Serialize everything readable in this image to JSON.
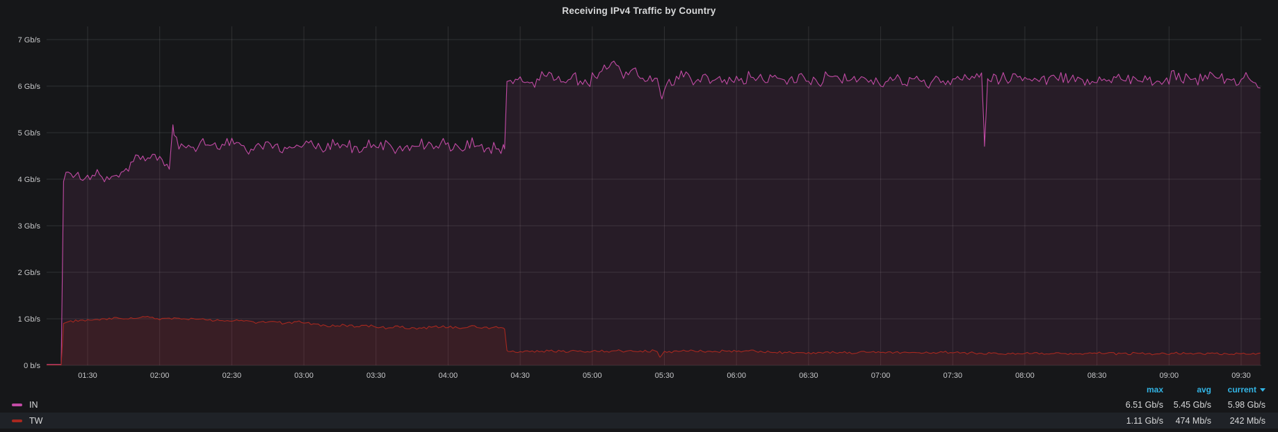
{
  "panel": {
    "title": "Receiving IPv4 Traffic by Country"
  },
  "colors": {
    "background": "#161719",
    "grid": "rgba(255,255,255,0.11)",
    "axis_text": "#c7c8ca",
    "title_text": "#d8d9da",
    "legend_header": "#33b5e5",
    "series_in": "#c24ba5",
    "series_tw": "#a8281f"
  },
  "chart_data": {
    "type": "line",
    "title": "Receiving IPv4 Traffic by Country",
    "x_axis": {
      "unit": "time (HH:MM)",
      "range_minutes": [
        73,
        578
      ],
      "tick_minutes": [
        90,
        120,
        150,
        180,
        210,
        240,
        270,
        300,
        330,
        360,
        390,
        420,
        450,
        480,
        510,
        540,
        570
      ],
      "tick_labels": [
        "01:30",
        "02:00",
        "02:30",
        "03:00",
        "03:30",
        "04:00",
        "04:30",
        "05:00",
        "05:30",
        "06:00",
        "06:30",
        "07:00",
        "07:30",
        "08:00",
        "08:30",
        "09:00",
        "09:30"
      ]
    },
    "y_axis": {
      "unit": "bits per second",
      "range": [
        0,
        7
      ],
      "tick_values": [
        0,
        1,
        2,
        3,
        4,
        5,
        6,
        7
      ],
      "tick_labels": [
        "0 b/s",
        "1 Gb/s",
        "2 Gb/s",
        "3 Gb/s",
        "4 Gb/s",
        "5 Gb/s",
        "6 Gb/s",
        "7 Gb/s"
      ],
      "grid": true
    },
    "series": [
      {
        "name": "IN",
        "color": "#c24ba5",
        "fill_opacity": 0.1,
        "seed": 7,
        "noise": [
          [
            81,
            263,
            0.1
          ],
          [
            266,
            578,
            0.1
          ]
        ],
        "points": [
          [
            73,
            0.02
          ],
          [
            79,
            0.02
          ],
          [
            80,
            3.95
          ],
          [
            83,
            4.1
          ],
          [
            88,
            4.0
          ],
          [
            95,
            4.1
          ],
          [
            100,
            4.05
          ],
          [
            104,
            4.2
          ],
          [
            107,
            4.15
          ],
          [
            109,
            4.45
          ],
          [
            112,
            4.5
          ],
          [
            116,
            4.45
          ],
          [
            119,
            4.55
          ],
          [
            122,
            4.35
          ],
          [
            124,
            4.3
          ],
          [
            125.5,
            5.12
          ],
          [
            127,
            4.8
          ],
          [
            132,
            4.65
          ],
          [
            138,
            4.75
          ],
          [
            145,
            4.7
          ],
          [
            152,
            4.78
          ],
          [
            158,
            4.65
          ],
          [
            165,
            4.75
          ],
          [
            172,
            4.7
          ],
          [
            180,
            4.72
          ],
          [
            188,
            4.65
          ],
          [
            195,
            4.75
          ],
          [
            202,
            4.7
          ],
          [
            210,
            4.75
          ],
          [
            218,
            4.65
          ],
          [
            226,
            4.72
          ],
          [
            234,
            4.78
          ],
          [
            242,
            4.68
          ],
          [
            250,
            4.75
          ],
          [
            256,
            4.7
          ],
          [
            261,
            4.62
          ],
          [
            263.5,
            4.65
          ],
          [
            264.5,
            6.1
          ],
          [
            268,
            6.15
          ],
          [
            274,
            6.05
          ],
          [
            280,
            6.2
          ],
          [
            286,
            6.1
          ],
          [
            292,
            6.18
          ],
          [
            298,
            6.08
          ],
          [
            303,
            6.25
          ],
          [
            309,
            6.5
          ],
          [
            313,
            6.15
          ],
          [
            317,
            6.4
          ],
          [
            322,
            6.1
          ],
          [
            327,
            6.15
          ],
          [
            328.5,
            5.8
          ],
          [
            331,
            6.1
          ],
          [
            337,
            6.2
          ],
          [
            344,
            6.1
          ],
          [
            352,
            6.18
          ],
          [
            360,
            6.12
          ],
          [
            368,
            6.2
          ],
          [
            376,
            6.1
          ],
          [
            384,
            6.18
          ],
          [
            392,
            6.1
          ],
          [
            400,
            6.2
          ],
          [
            408,
            6.12
          ],
          [
            416,
            6.18
          ],
          [
            424,
            6.1
          ],
          [
            432,
            6.16
          ],
          [
            440,
            6.1
          ],
          [
            448,
            6.18
          ],
          [
            456,
            6.12
          ],
          [
            462,
            6.15
          ],
          [
            463.2,
            4.85
          ],
          [
            464.5,
            6.1
          ],
          [
            470,
            6.15
          ],
          [
            478,
            6.2
          ],
          [
            486,
            6.1
          ],
          [
            494,
            6.18
          ],
          [
            502,
            6.12
          ],
          [
            510,
            6.2
          ],
          [
            518,
            6.1
          ],
          [
            526,
            6.18
          ],
          [
            534,
            6.1
          ],
          [
            542,
            6.2
          ],
          [
            550,
            6.12
          ],
          [
            558,
            6.18
          ],
          [
            566,
            6.1
          ],
          [
            572,
            6.2
          ],
          [
            576,
            6.05
          ],
          [
            578,
            6.0
          ]
        ]
      },
      {
        "name": "TW",
        "color": "#a8281f",
        "fill_opacity": 0.14,
        "seed": 13,
        "noise": [
          [
            81,
            578,
            0.018
          ]
        ],
        "points": [
          [
            73,
            0.01
          ],
          [
            79,
            0.01
          ],
          [
            80,
            0.9
          ],
          [
            84,
            0.95
          ],
          [
            90,
            0.97
          ],
          [
            96,
            1.0
          ],
          [
            102,
            1.02
          ],
          [
            108,
            1.0
          ],
          [
            114,
            1.03
          ],
          [
            120,
            1.0
          ],
          [
            126,
            1.02
          ],
          [
            132,
            0.99
          ],
          [
            138,
            1.0
          ],
          [
            144,
            0.96
          ],
          [
            150,
            0.94
          ],
          [
            155,
            0.97
          ],
          [
            160,
            0.92
          ],
          [
            166,
            0.95
          ],
          [
            172,
            0.9
          ],
          [
            178,
            0.93
          ],
          [
            184,
            0.88
          ],
          [
            190,
            0.85
          ],
          [
            196,
            0.86
          ],
          [
            202,
            0.83
          ],
          [
            208,
            0.85
          ],
          [
            214,
            0.8
          ],
          [
            220,
            0.83
          ],
          [
            226,
            0.78
          ],
          [
            232,
            0.81
          ],
          [
            238,
            0.84
          ],
          [
            244,
            0.8
          ],
          [
            250,
            0.83
          ],
          [
            256,
            0.8
          ],
          [
            260,
            0.82
          ],
          [
            263.5,
            0.78
          ],
          [
            264.5,
            0.31
          ],
          [
            270,
            0.3
          ],
          [
            278,
            0.31
          ],
          [
            286,
            0.3
          ],
          [
            294,
            0.31
          ],
          [
            302,
            0.3
          ],
          [
            310,
            0.31
          ],
          [
            318,
            0.3
          ],
          [
            325,
            0.31
          ],
          [
            327,
            0.28
          ],
          [
            328.2,
            0.17
          ],
          [
            330,
            0.29
          ],
          [
            336,
            0.3
          ],
          [
            344,
            0.31
          ],
          [
            352,
            0.3
          ],
          [
            360,
            0.31
          ],
          [
            368,
            0.3
          ],
          [
            374,
            0.28
          ],
          [
            382,
            0.27
          ],
          [
            390,
            0.27
          ],
          [
            398,
            0.28
          ],
          [
            406,
            0.27
          ],
          [
            414,
            0.28
          ],
          [
            422,
            0.27
          ],
          [
            430,
            0.28
          ],
          [
            438,
            0.27
          ],
          [
            446,
            0.28
          ],
          [
            454,
            0.27
          ],
          [
            462,
            0.26
          ],
          [
            470,
            0.25
          ],
          [
            478,
            0.26
          ],
          [
            486,
            0.25
          ],
          [
            494,
            0.26
          ],
          [
            502,
            0.25
          ],
          [
            510,
            0.26
          ],
          [
            518,
            0.25
          ],
          [
            526,
            0.26
          ],
          [
            534,
            0.25
          ],
          [
            542,
            0.26
          ],
          [
            550,
            0.25
          ],
          [
            558,
            0.25
          ],
          [
            566,
            0.24
          ],
          [
            572,
            0.25
          ],
          [
            578,
            0.24
          ]
        ]
      }
    ],
    "legend_position": "bottom",
    "legend": {
      "columns": {
        "max": "max",
        "avg": "avg",
        "current": "current"
      },
      "sorted_by": "current",
      "rows": [
        {
          "label": "IN",
          "max": "6.51 Gb/s",
          "avg": "5.45 Gb/s",
          "current": "5.98 Gb/s"
        },
        {
          "label": "TW",
          "max": "1.11 Gb/s",
          "avg": "474 Mb/s",
          "current": "242 Mb/s"
        }
      ]
    }
  }
}
